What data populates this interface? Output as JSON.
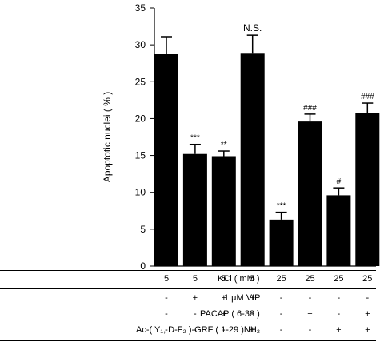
{
  "chart_data": {
    "type": "bar",
    "ylabel": "Apoptotic nuclei ( % )",
    "ylim": [
      0,
      35
    ],
    "yticks": [
      0,
      5,
      10,
      15,
      20,
      25,
      30,
      35
    ],
    "bar_color": "#000000",
    "values": [
      28.8,
      15.2,
      14.9,
      28.9,
      6.3,
      19.6,
      9.6,
      20.7
    ],
    "errors": [
      2.3,
      1.3,
      0.7,
      2.4,
      1.0,
      1.0,
      1.0,
      1.4
    ],
    "annotations": [
      "",
      "***",
      "**",
      "N.S.",
      "***",
      "###",
      "#",
      "###"
    ]
  },
  "conditions": [
    {
      "label": "KCl ( mM )",
      "values": [
        "5",
        "5",
        "5",
        "5",
        "25",
        "25",
        "25",
        "25"
      ]
    },
    {
      "label": "1 μM VIP",
      "values": [
        "-",
        "+",
        "+",
        "+",
        "-",
        "-",
        "-",
        "-"
      ]
    },
    {
      "label": "PACAP ( 6-38 )",
      "values": [
        "-",
        "-",
        "+",
        "-",
        "-",
        "+",
        "-",
        "+"
      ]
    },
    {
      "label": "Ac-( Y₁, D-F₂ )-GRF ( 1-29 )NH₂",
      "values": [
        "-",
        "-",
        "-",
        "+",
        "-",
        "-",
        "+",
        "+"
      ]
    }
  ]
}
